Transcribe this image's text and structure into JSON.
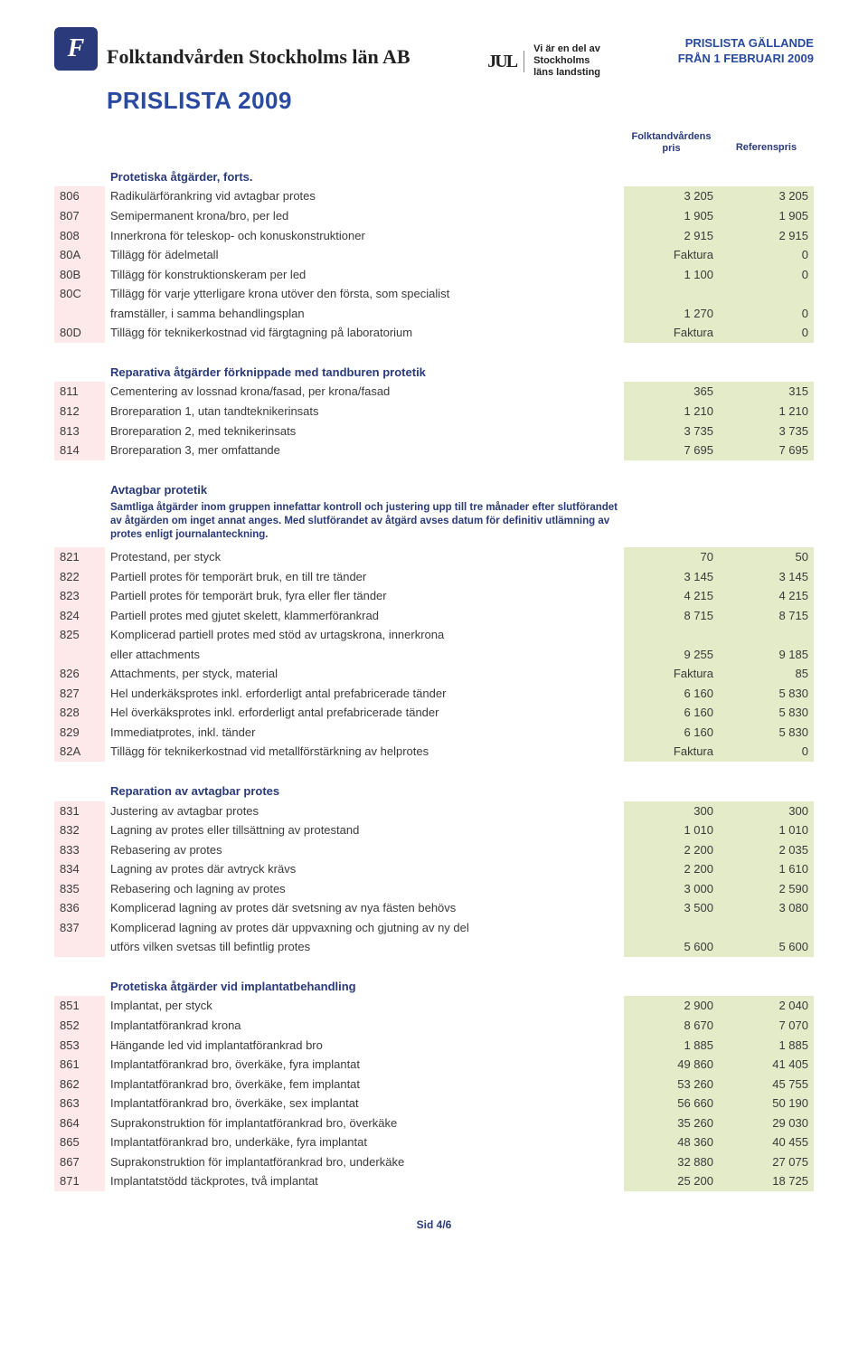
{
  "header": {
    "logo_glyph": "F",
    "company_name": "Folktandvården Stockholms län AB",
    "mid_logo": "JUL",
    "mid_text_l1": "Vi är en del av",
    "mid_text_l2": "Stockholms",
    "mid_text_l3": "läns landsting",
    "right_l1": "PRISLISTA GÄLLANDE",
    "right_l2": "FRÅN 1 FEBRUARI 2009",
    "main_title": "PRISLISTA 2009"
  },
  "column_headers": {
    "col1_l1": "Folktandvårdens",
    "col1_l2": "pris",
    "col2": "Referenspris"
  },
  "sections": [
    {
      "title": "Protetiska åtgärder, forts.",
      "rows": [
        {
          "code": "806",
          "desc": "Radikulärförankring vid avtagbar protes",
          "p1": "3 205",
          "p2": "3 205"
        },
        {
          "code": "807",
          "desc": "Semipermanent krona/bro, per led",
          "p1": "1 905",
          "p2": "1 905"
        },
        {
          "code": "808",
          "desc": "Innerkrona för teleskop- och konuskonstruktioner",
          "p1": "2 915",
          "p2": "2 915"
        },
        {
          "code": "80A",
          "desc": "Tillägg för ädelmetall",
          "p1": "Faktura",
          "p2": "0"
        },
        {
          "code": "80B",
          "desc": "Tillägg för konstruktionskeram per led",
          "p1": "1 100",
          "p2": "0"
        },
        {
          "code": "80C",
          "desc": "Tillägg för varje ytterligare krona utöver den första, som specialist",
          "p1": "",
          "p2": ""
        },
        {
          "code": "",
          "desc": "framställer, i samma behandlingsplan",
          "p1": "1 270",
          "p2": "0",
          "cont": true
        },
        {
          "code": "80D",
          "desc": "Tillägg för teknikerkostnad vid färgtagning på laboratorium",
          "p1": "Faktura",
          "p2": "0"
        }
      ]
    },
    {
      "title": "Reparativa åtgärder förknippade med tandburen protetik",
      "rows": [
        {
          "code": "811",
          "desc": "Cementering av lossnad krona/fasad, per krona/fasad",
          "p1": "365",
          "p2": "315"
        },
        {
          "code": "812",
          "desc": "Broreparation 1, utan tandteknikerinsats",
          "p1": "1 210",
          "p2": "1 210"
        },
        {
          "code": "813",
          "desc": "Broreparation 2, med teknikerinsats",
          "p1": "3 735",
          "p2": "3 735"
        },
        {
          "code": "814",
          "desc": "Broreparation 3, mer omfattande",
          "p1": "7 695",
          "p2": "7 695"
        }
      ]
    },
    {
      "title": "Avtagbar protetik",
      "note": "Samtliga åtgärder inom gruppen innefattar kontroll och justering upp till tre månader efter slutförandet av åtgärden om inget annat anges. Med slutförandet av åtgärd avses datum för definitiv utlämning av protes enligt journalanteckning.",
      "rows": [
        {
          "code": "821",
          "desc": "Protestand, per styck",
          "p1": "70",
          "p2": "50"
        },
        {
          "code": "822",
          "desc": "Partiell protes för temporärt bruk, en till tre tänder",
          "p1": "3 145",
          "p2": "3 145"
        },
        {
          "code": "823",
          "desc": "Partiell protes för temporärt bruk, fyra eller fler tänder",
          "p1": "4 215",
          "p2": "4 215"
        },
        {
          "code": "824",
          "desc": "Partiell protes med gjutet skelett, klammerförankrad",
          "p1": "8 715",
          "p2": "8 715"
        },
        {
          "code": "825",
          "desc": "Komplicerad partiell protes med stöd av urtagskrona, innerkrona",
          "p1": "",
          "p2": ""
        },
        {
          "code": "",
          "desc": "eller attachments",
          "p1": "9 255",
          "p2": "9 185",
          "cont": true
        },
        {
          "code": "826",
          "desc": "Attachments, per styck, material",
          "p1": "Faktura",
          "p2": "85"
        },
        {
          "code": "827",
          "desc": "Hel underkäksprotes inkl. erforderligt antal prefabricerade tänder",
          "p1": "6 160",
          "p2": "5 830"
        },
        {
          "code": "828",
          "desc": "Hel överkäksprotes inkl. erforderligt antal prefabricerade tänder",
          "p1": "6 160",
          "p2": "5 830"
        },
        {
          "code": "829",
          "desc": "Immediatprotes, inkl. tänder",
          "p1": "6 160",
          "p2": "5 830"
        },
        {
          "code": "82A",
          "desc": "Tillägg för teknikerkostnad vid metallförstärkning av helprotes",
          "p1": "Faktura",
          "p2": "0"
        }
      ]
    },
    {
      "title": "Reparation av avtagbar protes",
      "rows": [
        {
          "code": "831",
          "desc": "Justering av avtagbar protes",
          "p1": "300",
          "p2": "300"
        },
        {
          "code": "832",
          "desc": "Lagning av protes eller tillsättning av protestand",
          "p1": "1 010",
          "p2": "1 010"
        },
        {
          "code": "833",
          "desc": "Rebasering av protes",
          "p1": "2 200",
          "p2": "2 035"
        },
        {
          "code": "834",
          "desc": "Lagning av protes där avtryck krävs",
          "p1": "2 200",
          "p2": "1 610"
        },
        {
          "code": "835",
          "desc": "Rebasering och lagning av protes",
          "p1": "3 000",
          "p2": "2 590"
        },
        {
          "code": "836",
          "desc": "Komplicerad lagning av protes där svetsning av nya fästen behövs",
          "p1": "3 500",
          "p2": "3 080"
        },
        {
          "code": "837",
          "desc": "Komplicerad lagning av protes där uppvaxning och gjutning av ny del",
          "p1": "",
          "p2": ""
        },
        {
          "code": "",
          "desc": "utförs vilken svetsas till befintlig protes",
          "p1": "5 600",
          "p2": "5 600",
          "cont": true
        }
      ]
    },
    {
      "title": "Protetiska åtgärder vid implantatbehandling",
      "rows": [
        {
          "code": "851",
          "desc": "Implantat, per styck",
          "p1": "2 900",
          "p2": "2 040"
        },
        {
          "code": "852",
          "desc": "Implantatförankrad krona",
          "p1": "8 670",
          "p2": "7 070"
        },
        {
          "code": "853",
          "desc": "Hängande led vid implantatförankrad bro",
          "p1": "1 885",
          "p2": "1 885"
        },
        {
          "code": "861",
          "desc": "Implantatförankrad bro, överkäke, fyra implantat",
          "p1": "49 860",
          "p2": "41 405"
        },
        {
          "code": "862",
          "desc": "Implantatförankrad bro, överkäke, fem implantat",
          "p1": "53 260",
          "p2": "45 755"
        },
        {
          "code": "863",
          "desc": "Implantatförankrad bro, överkäke, sex implantat",
          "p1": "56 660",
          "p2": "50 190"
        },
        {
          "code": "864",
          "desc": "Suprakonstruktion för implantatförankrad bro, överkäke",
          "p1": "35 260",
          "p2": "29 030"
        },
        {
          "code": "865",
          "desc": "Implantatförankrad bro, underkäke, fyra implantat",
          "p1": "48 360",
          "p2": "40 455"
        },
        {
          "code": "867",
          "desc": "Suprakonstruktion för implantatförankrad bro, underkäke",
          "p1": "32 880",
          "p2": "27 075"
        },
        {
          "code": "871",
          "desc": "Implantatstödd täckprotes, två implantat",
          "p1": "25 200",
          "p2": "18 725"
        }
      ]
    }
  ],
  "footer": "Sid 4/6",
  "colors": {
    "accent_blue": "#2a4aa0",
    "code_bg": "#fde9e9",
    "price_bg": "#e3ebc8",
    "logo_bg": "#2a3a7a"
  }
}
